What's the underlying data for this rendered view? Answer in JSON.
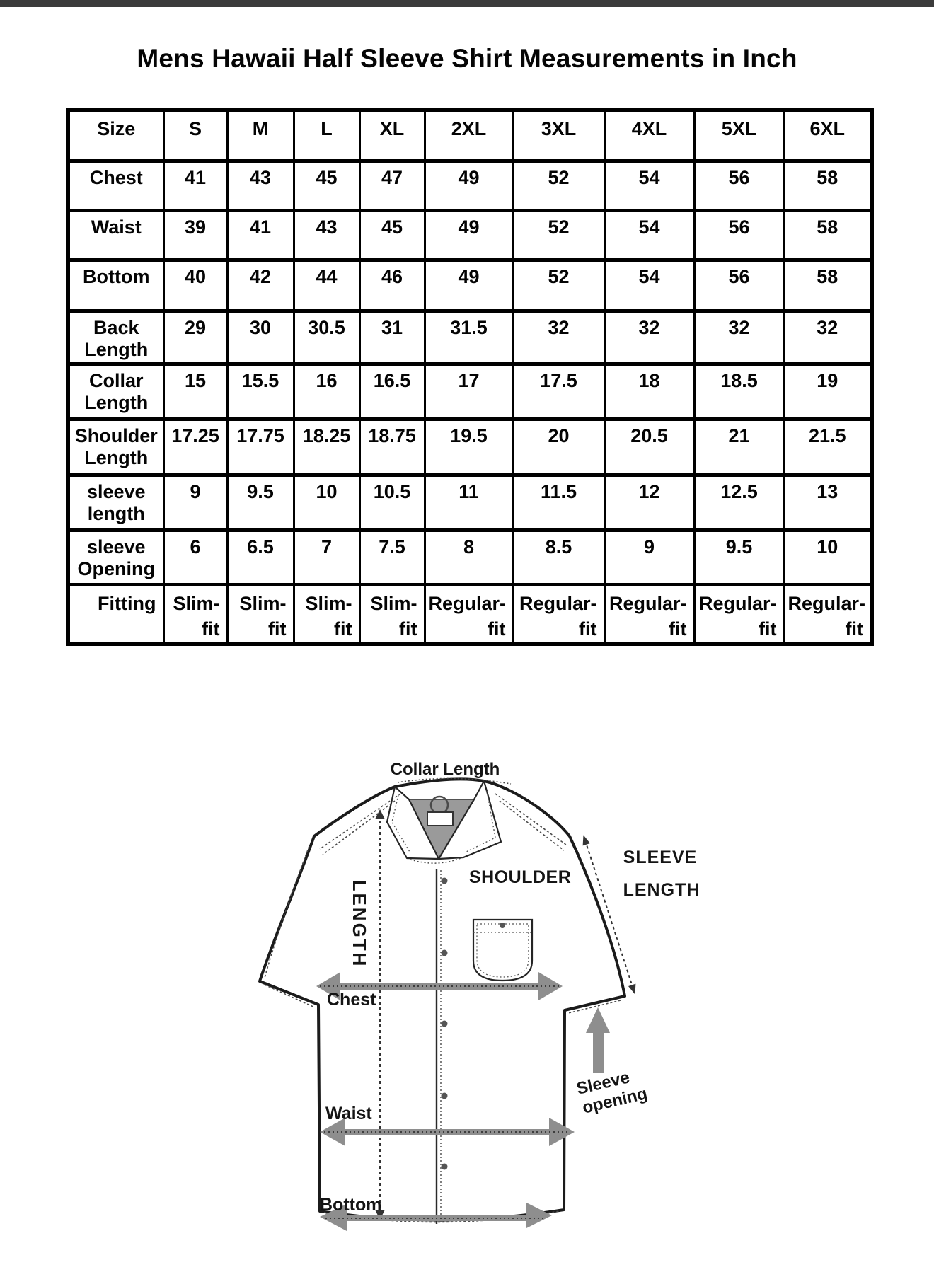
{
  "page": {
    "title": "Mens Hawaii Half Sleeve Shirt Measurements in Inch",
    "top_bar_color": "#3b3b3b"
  },
  "size_chart": {
    "header": [
      "Size",
      "S",
      "M",
      "L",
      "XL",
      "2XL",
      "3XL",
      "4XL",
      "5XL",
      "6XL"
    ],
    "rows": [
      {
        "label": "Chest",
        "values": [
          "41",
          "43",
          "45",
          "47",
          "49",
          "52",
          "54",
          "56",
          "58"
        ]
      },
      {
        "label": "Waist",
        "values": [
          "39",
          "41",
          "43",
          "45",
          "49",
          "52",
          "54",
          "56",
          "58"
        ]
      },
      {
        "label": "Bottom",
        "values": [
          "40",
          "42",
          "44",
          "46",
          "49",
          "52",
          "54",
          "56",
          "58"
        ]
      },
      {
        "label": "Back\nLength",
        "values": [
          "29",
          "30",
          "30.5",
          "31",
          "31.5",
          "32",
          "32",
          "32",
          "32"
        ]
      },
      {
        "label": "Collar\nLength",
        "values": [
          "15",
          "15.5",
          "16",
          "16.5",
          "17",
          "17.5",
          "18",
          "18.5",
          "19"
        ]
      },
      {
        "label": "Shoulder\nLength",
        "values": [
          "17.25",
          "17.75",
          "18.25",
          "18.75",
          "19.5",
          "20",
          "20.5",
          "21",
          "21.5"
        ]
      },
      {
        "label": "sleeve\nlength",
        "values": [
          "9",
          "9.5",
          "10",
          "10.5",
          "11",
          "11.5",
          "12",
          "12.5",
          "13"
        ]
      },
      {
        "label": "sleeve\nOpening",
        "values": [
          "6",
          "6.5",
          "7",
          "7.5",
          "8",
          "8.5",
          "9",
          "9.5",
          "10"
        ]
      },
      {
        "label": "Fitting",
        "align": "right",
        "values": [
          "Slim-\nfit",
          "Slim-\nfit",
          "Slim-\nfit",
          "Slim-\nfit",
          "Regular-\nfit",
          "Regular-\nfit",
          "Regular-\nfit",
          "Regular-\nfit",
          "Regular-\nfit"
        ]
      }
    ]
  },
  "diagram": {
    "labels": {
      "collar_length": "Collar Length",
      "shoulder": "SHOULDER",
      "sleeve_length_line1": "SLEEVE",
      "sleeve_length_line2": "LENGTH",
      "length": "LENGTH",
      "chest": "Chest",
      "waist": "Waist",
      "bottom": "Bottom",
      "sleeve_opening_line1": "Sleeve",
      "sleeve_opening_line2": "opening"
    },
    "colors": {
      "arrow": "#8e8e8e",
      "collar_fill": "#9a9a9a",
      "line": "#1b1b1b"
    }
  }
}
